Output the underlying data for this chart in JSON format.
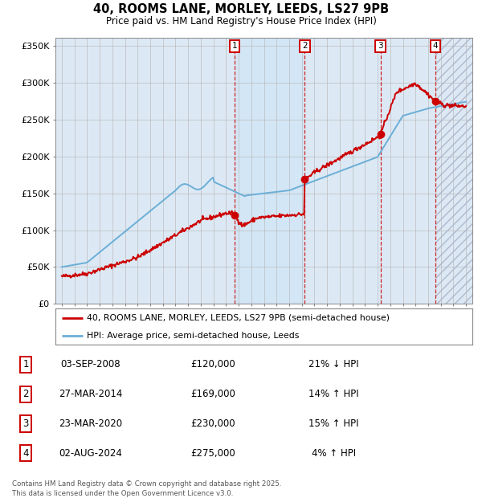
{
  "title": "40, ROOMS LANE, MORLEY, LEEDS, LS27 9PB",
  "subtitle": "Price paid vs. HM Land Registry's House Price Index (HPI)",
  "ylabel_ticks": [
    "£0",
    "£50K",
    "£100K",
    "£150K",
    "£200K",
    "£250K",
    "£300K",
    "£350K"
  ],
  "ytick_values": [
    0,
    50000,
    100000,
    150000,
    200000,
    250000,
    300000,
    350000
  ],
  "ylim": [
    0,
    362000
  ],
  "xlim_start": 1994.5,
  "xlim_end": 2027.5,
  "transactions": [
    {
      "num": 1,
      "date": "03-SEP-2008",
      "price": 120000,
      "pct": "21%",
      "dir": "↓",
      "year": 2008.67
    },
    {
      "num": 2,
      "date": "27-MAR-2014",
      "price": 169000,
      "pct": "14%",
      "dir": "↑",
      "year": 2014.23
    },
    {
      "num": 3,
      "date": "23-MAR-2020",
      "price": 230000,
      "pct": "15%",
      "dir": "↑",
      "year": 2020.22
    },
    {
      "num": 4,
      "date": "02-AUG-2024",
      "price": 275000,
      "pct": "4%",
      "dir": "↑",
      "year": 2024.58
    }
  ],
  "legend_line1": "40, ROOMS LANE, MORLEY, LEEDS, LS27 9PB (semi-detached house)",
  "legend_line2": "HPI: Average price, semi-detached house, Leeds",
  "footnote": "Contains HM Land Registry data © Crown copyright and database right 2025.\nThis data is licensed under the Open Government Licence v3.0.",
  "hpi_color": "#6baed6",
  "price_color": "#cc0000",
  "bg_color": "#ffffff",
  "plot_bg": "#dce9f5",
  "grid_color": "#bbbbbb",
  "hatch_color": "#b0b8cc"
}
